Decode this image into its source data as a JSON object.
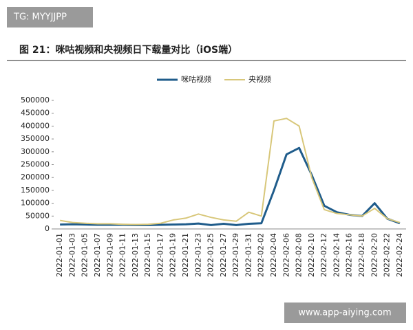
{
  "watermark_top": "TG: MYYJJPP",
  "watermark_bottom": "www.app-aiying.com",
  "chart_data": {
    "type": "line",
    "title": "图 21：咪咕视频和央视频日下载量对比（iOS端）",
    "categories": [
      "2022-01-01",
      "2022-01-03",
      "2022-01-05",
      "2022-01-07",
      "2022-01-09",
      "2022-01-11",
      "2022-01-13",
      "2022-01-15",
      "2022-01-17",
      "2022-01-19",
      "2022-01-21",
      "2022-01-23",
      "2022-01-25",
      "2022-01-27",
      "2022-01-29",
      "2022-01-31",
      "2022-02-02",
      "2022-02-04",
      "2022-02-06",
      "2022-02-08",
      "2022-02-10",
      "2022-02-12",
      "2022-02-14",
      "2022-02-16",
      "2022-02-18",
      "2022-02-20",
      "2022-02-22",
      "2022-02-24"
    ],
    "series": [
      {
        "name": "咪咕视频",
        "color": "#1f5c8b",
        "values": [
          17000,
          18000,
          17000,
          16000,
          16000,
          16000,
          15000,
          15000,
          16000,
          17000,
          18000,
          21000,
          15000,
          20000,
          15000,
          20000,
          22000,
          150000,
          290000,
          315000,
          210000,
          90000,
          65000,
          55000,
          50000,
          100000,
          40000,
          22000
        ]
      },
      {
        "name": "央视频",
        "color": "#d8c77a",
        "values": [
          33000,
          25000,
          22000,
          20000,
          20000,
          18000,
          17000,
          18000,
          22000,
          35000,
          42000,
          58000,
          45000,
          35000,
          30000,
          65000,
          50000,
          420000,
          430000,
          400000,
          200000,
          75000,
          60000,
          55000,
          50000,
          80000,
          40000,
          25000
        ]
      }
    ],
    "ylim": [
      0,
      500000
    ],
    "yticks": [
      0,
      50000,
      100000,
      150000,
      200000,
      250000,
      300000,
      350000,
      400000,
      450000,
      500000
    ],
    "grid": false
  }
}
